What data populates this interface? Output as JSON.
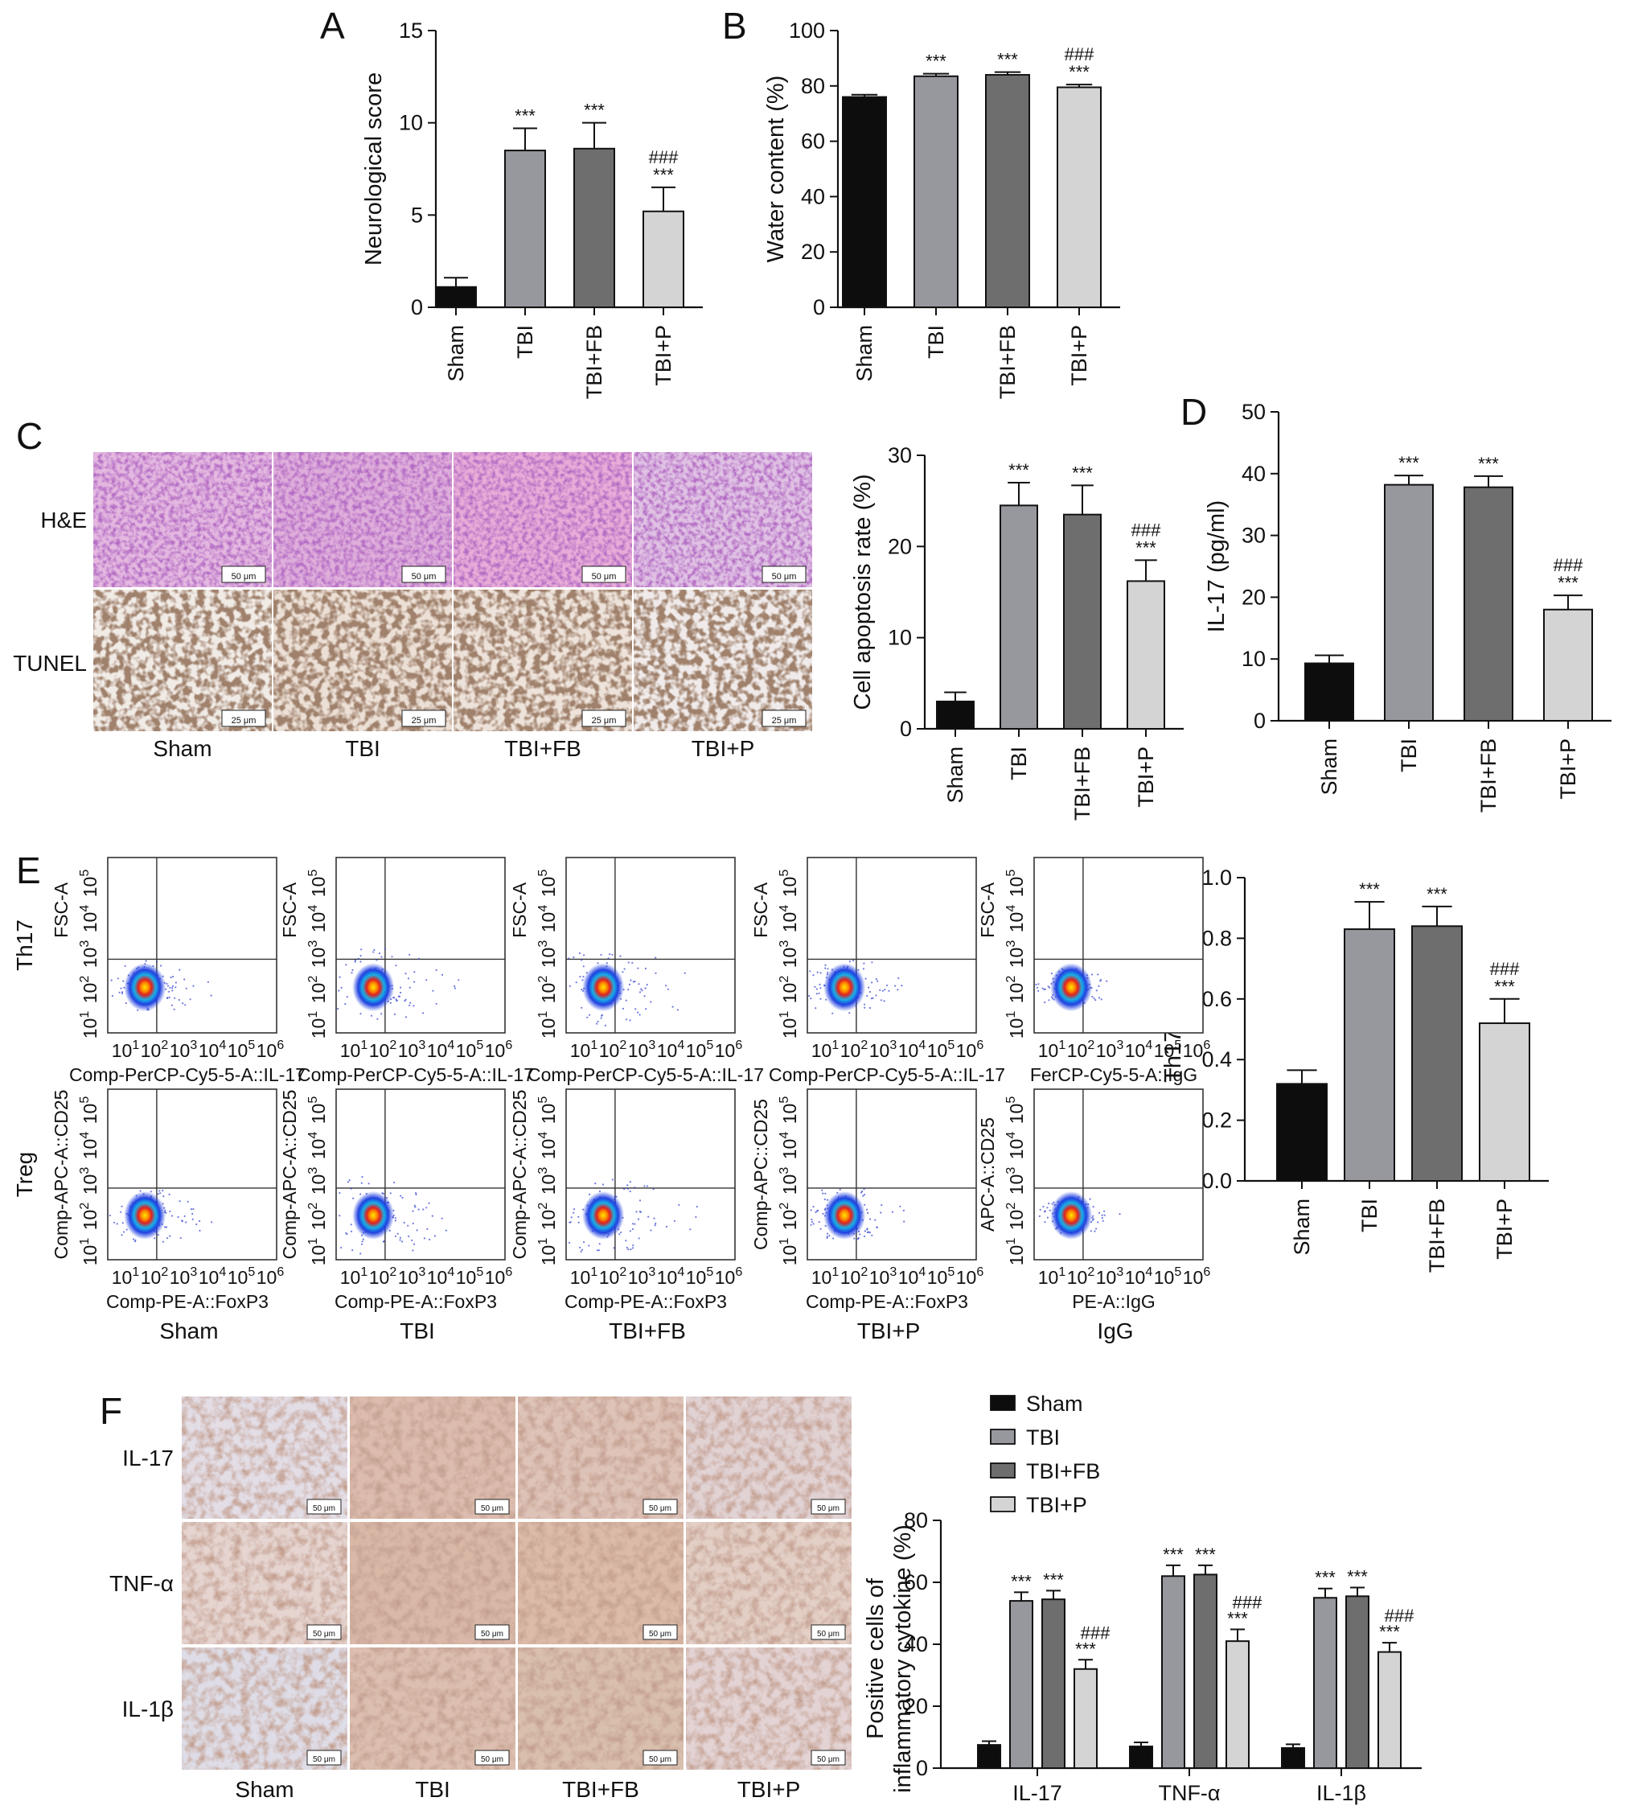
{
  "colors": {
    "Sham": "#0d0d0d",
    "TBI": "#97979e",
    "TBI+FB": "#6e6e6e",
    "TBI+P": "#d4d4d4",
    "dots": "#3040d0"
  },
  "panels": {
    "A": {
      "letter": "A"
    },
    "B": {
      "letter": "B"
    },
    "C": {
      "letter": "C",
      "row_labels": [
        "H&E",
        "TUNEL"
      ],
      "col_labels": [
        "Sham",
        "TBI",
        "TBI+FB",
        "TBI+P"
      ],
      "scale_he": "50 μm",
      "scale_tunel": "25 μm"
    },
    "D": {
      "letter": "D"
    },
    "E": {
      "letter": "E",
      "row_labels": [
        "Th17",
        "Treg"
      ],
      "col_labels": [
        "Sham",
        "TBI",
        "TBI+FB",
        "TBI+P",
        "IgG"
      ],
      "th17_ylabels": [
        "FSC-A",
        "FSC-A",
        "FSC-A",
        "FSC-A",
        "FSC-A"
      ],
      "th17_xlabels": [
        "Comp-PerCP-Cy5-5-A::IL-17",
        "Comp-PerCP-Cy5-5-A::IL-17",
        "Comp-PerCP-Cy5-5-A::IL-17",
        "Comp-PerCP-Cy5-5-A::IL-17",
        "FerCP-Cy5-5-A::IgG"
      ],
      "treg_ylabels": [
        "Comp-APC-A::CD25",
        "Comp-APC-A::CD25",
        "Comp-APC-A::CD25",
        "Comp-APC::CD25",
        "APC-A::CD25"
      ],
      "treg_xlabels": [
        "Comp-PE-A::FoxP3",
        "Comp-PE-A::FoxP3",
        "Comp-PE-A::FoxP3",
        "Comp-PE-A::FoxP3",
        "PE-A::IgG"
      ],
      "log_ticks": [
        "10",
        "10",
        "10",
        "10",
        "10",
        "10"
      ],
      "log_exps": [
        "1",
        "2",
        "3",
        "4",
        "5",
        "6"
      ]
    },
    "F": {
      "letter": "F",
      "row_labels": [
        "IL-17",
        "TNF-α",
        "IL-1β"
      ],
      "col_labels": [
        "Sham",
        "TBI",
        "TBI+FB",
        "TBI+P"
      ],
      "scale": "50 μm"
    }
  },
  "chart_data": [
    {
      "panel": "A",
      "type": "bar",
      "categories": [
        "Sham",
        "TBI",
        "TBI+FB",
        "TBI+P"
      ],
      "values": [
        1.1,
        8.5,
        8.6,
        5.2
      ],
      "errors": [
        0.5,
        1.2,
        1.4,
        1.3
      ],
      "ylabel": "Neurological score",
      "ylim": [
        0,
        15
      ],
      "yticks": [
        0,
        5,
        10,
        15
      ],
      "sig_star": [
        "",
        "***",
        "***",
        "***"
      ],
      "sig_hash": [
        "",
        "",
        "",
        "###"
      ]
    },
    {
      "panel": "B",
      "type": "bar",
      "categories": [
        "Sham",
        "TBI",
        "TBI+FB",
        "TBI+P"
      ],
      "values": [
        76,
        83.5,
        84,
        79.5
      ],
      "errors": [
        0.8,
        0.9,
        1.0,
        1.0
      ],
      "ylabel": "Water content (%)",
      "ylim": [
        0,
        100
      ],
      "yticks": [
        0,
        20,
        40,
        60,
        80,
        100
      ],
      "sig_star": [
        "",
        "***",
        "***",
        "***"
      ],
      "sig_hash": [
        "",
        "",
        "",
        "###"
      ]
    },
    {
      "panel": "C",
      "type": "bar",
      "categories": [
        "Sham",
        "TBI",
        "TBI+FB",
        "TBI+P"
      ],
      "values": [
        3,
        24.5,
        23.5,
        16.2
      ],
      "errors": [
        1.0,
        2.5,
        3.2,
        2.3
      ],
      "ylabel": "Cell apoptosis rate (%)",
      "ylim": [
        0,
        30
      ],
      "yticks": [
        0,
        10,
        20,
        30
      ],
      "sig_star": [
        "",
        "***",
        "***",
        "***"
      ],
      "sig_hash": [
        "",
        "",
        "",
        "###"
      ]
    },
    {
      "panel": "D",
      "type": "bar",
      "categories": [
        "Sham",
        "TBI",
        "TBI+FB",
        "TBI+P"
      ],
      "values": [
        9.3,
        38.2,
        37.8,
        18
      ],
      "errors": [
        1.3,
        1.5,
        1.8,
        2.3
      ],
      "ylabel": "IL-17 (pg/ml)",
      "ylim": [
        0,
        50
      ],
      "yticks": [
        0,
        10,
        20,
        30,
        40,
        50
      ],
      "sig_star": [
        "",
        "***",
        "***",
        "***"
      ],
      "sig_hash": [
        "",
        "",
        "",
        "###"
      ]
    },
    {
      "panel": "E",
      "type": "bar",
      "categories": [
        "Sham",
        "TBI",
        "TBI+FB",
        "TBI+P"
      ],
      "values": [
        0.32,
        0.83,
        0.84,
        0.52
      ],
      "errors": [
        0.045,
        0.09,
        0.065,
        0.08
      ],
      "ylabel": "Th17/Treg",
      "ylim": [
        0,
        1.0
      ],
      "yticks": [
        "0.0",
        "0.2",
        "0.4",
        "0.6",
        "0.8",
        "1.0"
      ],
      "sig_star": [
        "",
        "***",
        "***",
        "***"
      ],
      "sig_hash": [
        "",
        "",
        "",
        "###"
      ]
    },
    {
      "panel": "F",
      "type": "bar",
      "categories": [
        "IL-17",
        "TNF-α",
        "IL-1β"
      ],
      "series": [
        {
          "name": "Sham",
          "values": [
            7.5,
            7,
            6.5
          ],
          "errors": [
            1.2,
            1.3,
            1.2
          ]
        },
        {
          "name": "TBI",
          "values": [
            54,
            62,
            55
          ],
          "errors": [
            2.8,
            3.5,
            3.0
          ]
        },
        {
          "name": "TBI+FB",
          "values": [
            54.5,
            62.5,
            55.5
          ],
          "errors": [
            2.8,
            3.0,
            2.8
          ]
        },
        {
          "name": "TBI+P",
          "values": [
            32,
            41,
            37.5
          ],
          "errors": [
            3.0,
            3.8,
            3.0
          ]
        }
      ],
      "ylabel": "Positive cells of inflammatory cytokine (%)",
      "ylim": [
        0,
        80
      ],
      "yticks": [
        0,
        20,
        40,
        60,
        80
      ],
      "sig_star": [
        "",
        "***",
        "***",
        "***"
      ],
      "sig_hash": [
        "",
        "",
        "",
        "###"
      ],
      "legend_position": "top"
    }
  ]
}
